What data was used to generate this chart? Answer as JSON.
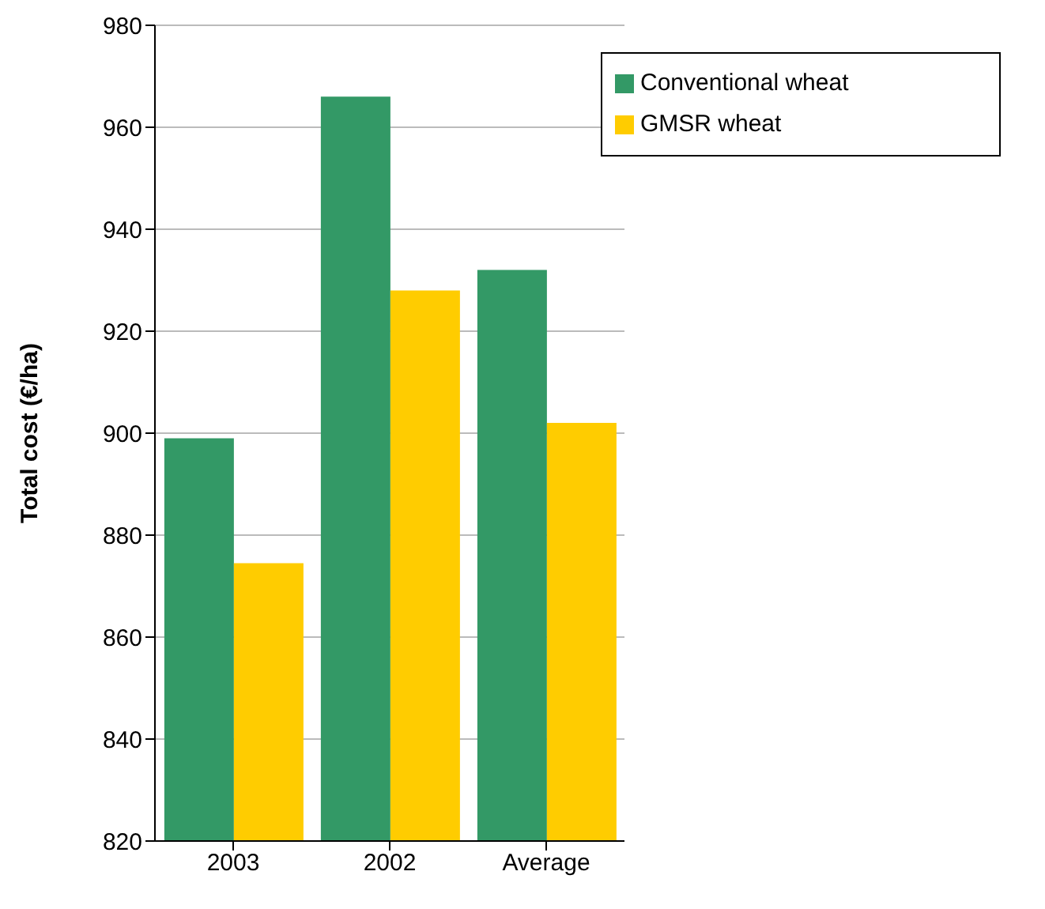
{
  "chart_data": {
    "type": "bar",
    "ylabel": "Total cost (€/ha)",
    "categories": [
      "2003",
      "2002",
      "Average"
    ],
    "series": [
      {
        "name": "Conventional wheat",
        "color": "#339966",
        "values": [
          899,
          966,
          932
        ]
      },
      {
        "name": "GMSR wheat",
        "color": "#ffcc00",
        "values": [
          874.5,
          928,
          902
        ]
      }
    ],
    "ylim": [
      820,
      980
    ],
    "yticks": [
      820,
      840,
      860,
      880,
      900,
      920,
      940,
      960,
      980
    ],
    "grid": "y",
    "legend": "top right"
  }
}
